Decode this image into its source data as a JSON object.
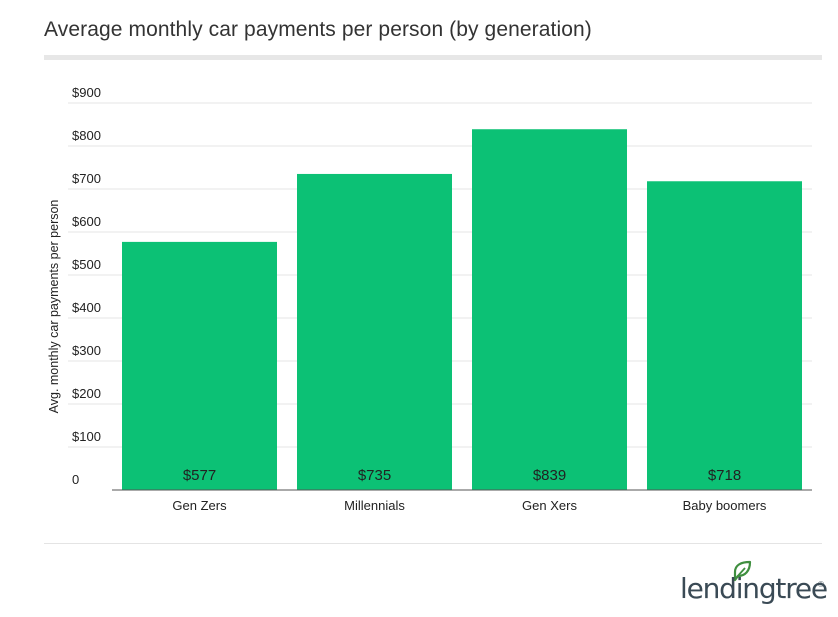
{
  "header": {
    "title": "Average monthly car payments per person (by generation)"
  },
  "brand": {
    "logo_text": "lendingtree",
    "logo_reg": "®",
    "logo_icon": "leaf-icon",
    "accent": "#3f8f3f"
  },
  "colors": {
    "bar": "#0cc175",
    "grid": "#e6e6e6",
    "axis": "#555555",
    "label": "#222222"
  },
  "chart_data": {
    "type": "bar",
    "title": "Average monthly car payments per person (by generation)",
    "xlabel": "",
    "ylabel": "Avg. monthly car payments per person",
    "categories": [
      "Gen Zers",
      "Millennials",
      "Gen Xers",
      "Baby boomers"
    ],
    "values": [
      577,
      735,
      839,
      718
    ],
    "value_labels": [
      "$577",
      "$735",
      "$839",
      "$718"
    ],
    "yticks": [
      0,
      100,
      200,
      300,
      400,
      500,
      600,
      700,
      800,
      900
    ],
    "ytick_labels": [
      "0",
      "$100",
      "$200",
      "$300",
      "$400",
      "$500",
      "$600",
      "$700",
      "$800",
      "$900"
    ],
    "ylim": [
      0,
      900
    ],
    "grid": true,
    "legend": "none"
  }
}
